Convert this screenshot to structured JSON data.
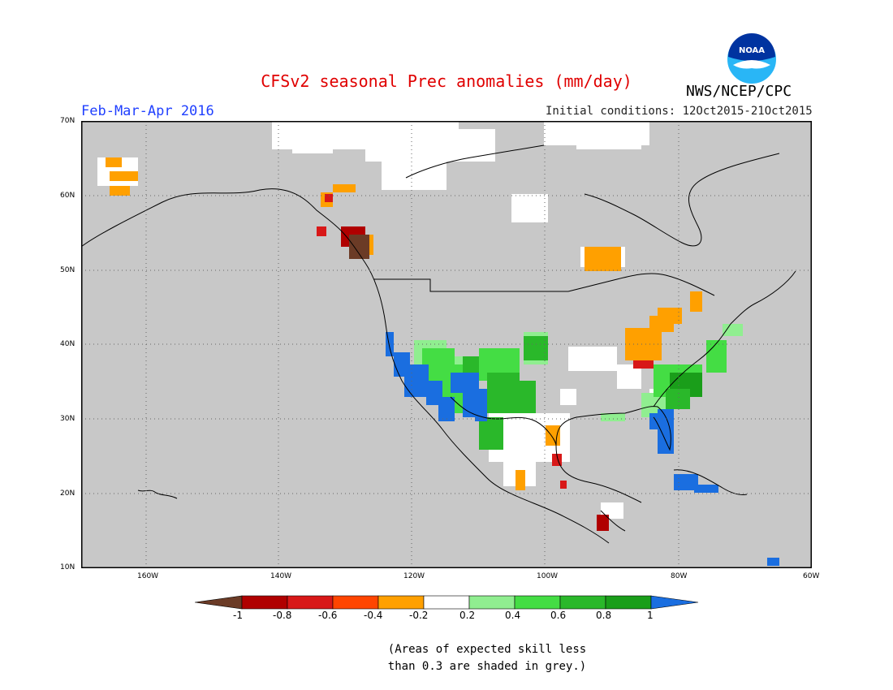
{
  "title": "CFSv2 seasonal Prec anomalies (mm/day)",
  "period": "Feb-Mar-Apr 2016",
  "initial_conditions": "Initial conditions: 12Oct2015-21Oct2015",
  "organization": "NWS/NCEP/CPC",
  "logo_text": "NOAA",
  "lat_labels": [
    "70N",
    "60N",
    "50N",
    "40N",
    "30N",
    "20N",
    "10N"
  ],
  "lon_labels": [
    "160W",
    "140W",
    "120W",
    "100W",
    "80W",
    "60W"
  ],
  "map_extent": {
    "lon": [
      -172,
      -60
    ],
    "lat": [
      10,
      70
    ]
  },
  "colorbar": {
    "labels": [
      "-1",
      "-0.8",
      "-0.6",
      "-0.4",
      "-0.2",
      "0.2",
      "0.4",
      "0.6",
      "0.8",
      "1"
    ],
    "colors": [
      "#6b3b26",
      "#b00000",
      "#d81818",
      "#ff4500",
      "#ffa000",
      "#ffffff",
      "#90ee90",
      "#44dd44",
      "#2ab82a",
      "#1a9e1a",
      "#1a6ee0"
    ]
  },
  "note_line1": "(Areas of expected skill less",
  "note_line2": "than 0.3 are shaded in grey.)",
  "colors": {
    "title": "#e00000",
    "period": "#2040ff",
    "land_grey": "#c8c8c8",
    "blue": "#1a6ee0",
    "orange": "#ffa000"
  }
}
